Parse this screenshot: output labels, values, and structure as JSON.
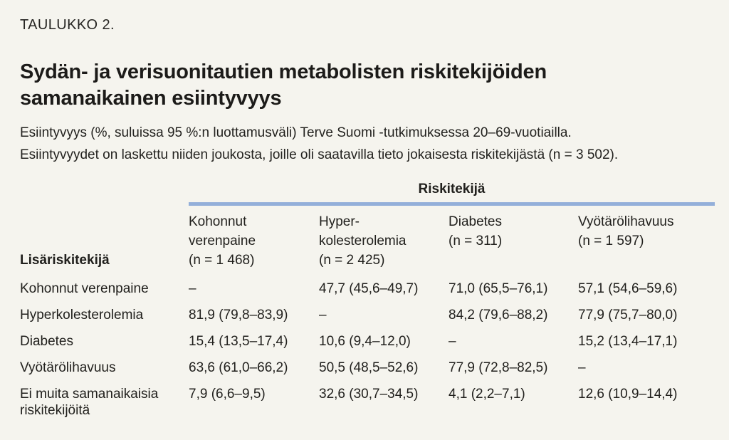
{
  "page": {
    "table_label": "TAULUKKO 2.",
    "title_line1": "Sydän- ja verisuonitautien metabolisten riskitekijöiden",
    "title_line2": "samanaikainen esiintyvyys",
    "description_line1": "Esiintyvyys (%, suluissa 95 %:n luottamusväli) Terve Suomi -tutkimuksessa 20–69-vuotiailla.",
    "description_line2": "Esiintyvyydet on laskettu niiden joukosta, joille oli saatavilla tieto jokaisesta riskitekijästä (n = 3 502)."
  },
  "table": {
    "group_header": "Riskitekijä",
    "row_axis_header": "Lisäriskitekijä",
    "columns": [
      {
        "lines": [
          "Kohonnut",
          "verenpaine",
          "(n = 1 468)"
        ]
      },
      {
        "lines": [
          "Hyper-",
          "kolesterolemia",
          "(n = 2 425)"
        ]
      },
      {
        "lines": [
          "Diabetes",
          "(n = 311)"
        ]
      },
      {
        "lines": [
          "Vyötärölihavuus",
          "(n = 1 597)"
        ]
      }
    ],
    "rows": [
      {
        "label": "Kohonnut verenpaine",
        "values": [
          "–",
          "47,7 (45,6–49,7)",
          "71,0 (65,5–76,1)",
          "57,1 (54,6–59,6)"
        ]
      },
      {
        "label": "Hyperkolesterolemia",
        "values": [
          "81,9 (79,8–83,9)",
          "–",
          "84,2 (79,6–88,2)",
          "77,9 (75,7–80,0)"
        ]
      },
      {
        "label": "Diabetes",
        "values": [
          "15,4 (13,5–17,4)",
          "10,6 (9,4–12,0)",
          "–",
          "15,2 (13,4–17,1)"
        ]
      },
      {
        "label": "Vyötärölihavuus",
        "values": [
          "63,6 (61,0–66,2)",
          "50,5 (48,5–52,6)",
          "77,9 (72,8–82,5)",
          "–"
        ]
      },
      {
        "label": "Ei muita samanaikaisia riskitekijöitä",
        "values": [
          "7,9 (6,6–9,5)",
          "32,6 (30,7–34,5)",
          "4,1 (2,2–7,1)",
          "12,6 (10,9–14,4)"
        ]
      }
    ]
  },
  "colors": {
    "background": "#f5f4ee",
    "text": "#21201d",
    "accent_line": "#93afd9"
  }
}
